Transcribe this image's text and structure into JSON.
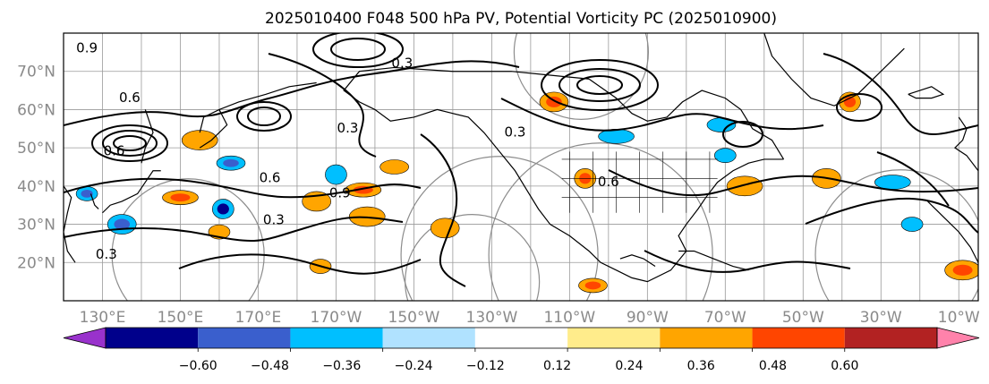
{
  "chart_data": {
    "type": "heatmap",
    "title": "2025010400 F048 500 hPa PV, Potential Vorticity PC (2025010900)",
    "map": {
      "lat_range": [
        10,
        80
      ],
      "lon_range": [
        120,
        355
      ],
      "lat_ticks": [
        {
          "value": 20,
          "label": "20°N"
        },
        {
          "value": 30,
          "label": "30°N"
        },
        {
          "value": 40,
          "label": "40°N"
        },
        {
          "value": 50,
          "label": "50°N"
        },
        {
          "value": 60,
          "label": "60°N"
        },
        {
          "value": 70,
          "label": "70°N"
        }
      ],
      "lon_ticks": [
        {
          "value": 130,
          "label": "130°E"
        },
        {
          "value": 150,
          "label": "150°E"
        },
        {
          "value": 170,
          "label": "170°E"
        },
        {
          "value": 190,
          "label": "170°W"
        },
        {
          "value": 210,
          "label": "150°W"
        },
        {
          "value": 230,
          "label": "130°W"
        },
        {
          "value": 250,
          "label": "110°W"
        },
        {
          "value": 270,
          "label": "90°W"
        },
        {
          "value": 290,
          "label": "70°W"
        },
        {
          "value": 310,
          "label": "50°W"
        },
        {
          "value": 330,
          "label": "30°W"
        },
        {
          "value": 350,
          "label": "10°W"
        }
      ],
      "grid_spacing_deg": 10,
      "contour_labels": [
        {
          "text": "0.3",
          "lon": 193,
          "lat": 54
        },
        {
          "text": "0.3",
          "lon": 131,
          "lat": 21
        },
        {
          "text": "0.6",
          "lon": 173,
          "lat": 41
        },
        {
          "text": "0.6",
          "lon": 133,
          "lat": 48
        },
        {
          "text": "0.3",
          "lon": 174,
          "lat": 30
        },
        {
          "text": "0.3",
          "lon": 207,
          "lat": 71
        },
        {
          "text": "0.3",
          "lon": 236,
          "lat": 53
        },
        {
          "text": "0.6",
          "lon": 260,
          "lat": 40
        },
        {
          "text": "0.9",
          "lon": 126,
          "lat": 75
        },
        {
          "text": "0.6",
          "lon": 137,
          "lat": 62
        },
        {
          "text": "0.9",
          "lon": 191,
          "lat": 37
        }
      ],
      "anomaly_features": [
        {
          "lon": 126,
          "lat": 38,
          "value": -0.45
        },
        {
          "lon": 135,
          "lat": 30,
          "value": -0.4
        },
        {
          "lon": 150,
          "lat": 37,
          "value": 0.45
        },
        {
          "lon": 161,
          "lat": 34,
          "value": -0.5
        },
        {
          "lon": 163,
          "lat": 46,
          "value": -0.4
        },
        {
          "lon": 155,
          "lat": 52,
          "value": 0.3
        },
        {
          "lon": 160,
          "lat": 28,
          "value": 0.28
        },
        {
          "lon": 185,
          "lat": 36,
          "value": 0.35
        },
        {
          "lon": 197,
          "lat": 39,
          "value": 0.4
        },
        {
          "lon": 190,
          "lat": 43,
          "value": -0.3
        },
        {
          "lon": 205,
          "lat": 45,
          "value": 0.35
        },
        {
          "lon": 198,
          "lat": 32,
          "value": 0.3
        },
        {
          "lon": 186,
          "lat": 19,
          "value": 0.35
        },
        {
          "lon": 246,
          "lat": 62,
          "value": 0.4
        },
        {
          "lon": 262,
          "lat": 53,
          "value": -0.3
        },
        {
          "lon": 254,
          "lat": 42,
          "value": 0.4
        },
        {
          "lon": 289,
          "lat": 56,
          "value": -0.3
        },
        {
          "lon": 295,
          "lat": 40,
          "value": 0.3
        },
        {
          "lon": 290,
          "lat": 48,
          "value": -0.35
        },
        {
          "lon": 316,
          "lat": 42,
          "value": 0.35
        },
        {
          "lon": 333,
          "lat": 41,
          "value": -0.3
        },
        {
          "lon": 322,
          "lat": 62,
          "value": 0.45
        },
        {
          "lon": 256,
          "lat": 14,
          "value": 0.4
        },
        {
          "lon": 351,
          "lat": 18,
          "value": 0.45
        },
        {
          "lon": 338,
          "lat": 30,
          "value": -0.3
        },
        {
          "lon": 218,
          "lat": 29,
          "value": 0.28
        }
      ]
    },
    "colorbar": {
      "levels": [
        -0.6,
        -0.48,
        -0.36,
        -0.24,
        -0.12,
        0.12,
        0.24,
        0.36,
        0.48,
        0.6
      ],
      "tick_labels": [
        "−0.60",
        "−0.48",
        "−0.36",
        "−0.24",
        "−0.12",
        "0.12",
        "0.24",
        "0.36",
        "0.48",
        "0.60"
      ],
      "colors": [
        "#9932cc",
        "#00008b",
        "#3a5fcd",
        "#00bfff",
        "#b0e2ff",
        "#ffffff",
        "#ffec8b",
        "#ffa500",
        "#ff4500",
        "#b22222",
        "#ff82ab"
      ],
      "extend": "both"
    }
  }
}
